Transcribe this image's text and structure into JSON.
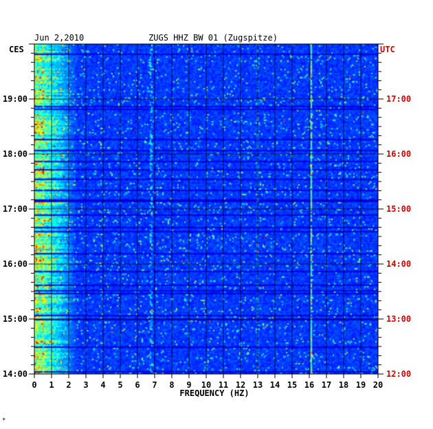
{
  "header": {
    "date": "Jun 2,2010",
    "station": "ZUGS HHZ BW 01 (Zugspitze)",
    "left_timezone": "CES",
    "right_timezone": "UTC",
    "footer_mark": "*"
  },
  "colors": {
    "background": "#ffffff",
    "axis_text": "#000000",
    "utc_text": "#cc0000",
    "spectrogram_base": "#0a1a9a",
    "gridline": "#000000"
  },
  "chart_data": {
    "type": "heatmap",
    "title": "ZUGS HHZ BW 01 (Zugspitze)",
    "xlabel": "FREQUENCY (HZ)",
    "ylabel": "",
    "x_range": [
      0,
      20
    ],
    "x_ticks": [
      "0",
      "1",
      "2",
      "3",
      "4",
      "5",
      "6",
      "7",
      "8",
      "9",
      "10",
      "11",
      "12",
      "13",
      "14",
      "15",
      "16",
      "17",
      "18",
      "19",
      "20"
    ],
    "y_ticks_left": [
      "14:00",
      "15:00",
      "16:00",
      "17:00",
      "18:00",
      "19:00"
    ],
    "y_ticks_right": [
      "12:00",
      "13:00",
      "14:00",
      "15:00",
      "16:00",
      "17:00"
    ],
    "time_range_local_hours": [
      14.0,
      20.0
    ],
    "colormap": "jet",
    "grid": true,
    "notable_features": [
      {
        "frequency_hz": 16.1,
        "description": "persistent narrow vertical line"
      },
      {
        "frequency_hz": 13.0,
        "description": "intermittent vertical line"
      },
      {
        "frequency_hz": 6.8,
        "description": "weak vertical line"
      },
      {
        "frequency_hz": 0.5,
        "description": "strong low-frequency energy"
      }
    ]
  }
}
